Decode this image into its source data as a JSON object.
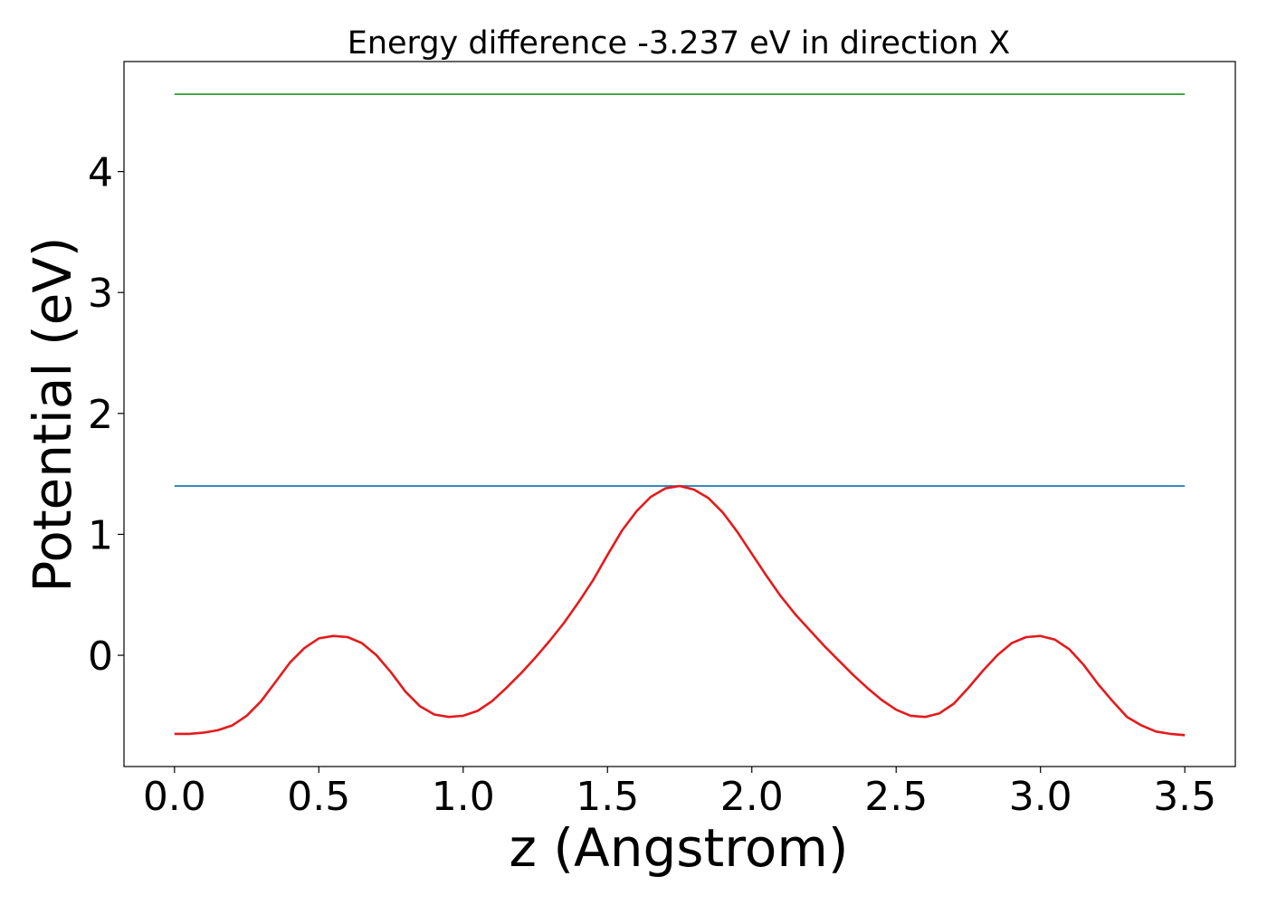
{
  "chart_data": {
    "type": "line",
    "title": "Energy difference -3.237 eV in direction X",
    "xlabel": "z (Angstrom)",
    "ylabel": "Potential (eV)",
    "xlim": [
      -0.175,
      3.675
    ],
    "ylim": [
      -0.92,
      4.91
    ],
    "x_ticks": [
      0.0,
      0.5,
      1.0,
      1.5,
      2.0,
      2.5,
      3.0,
      3.5
    ],
    "x_tick_labels": [
      "0.0",
      "0.5",
      "1.0",
      "1.5",
      "2.0",
      "2.5",
      "3.0",
      "3.5"
    ],
    "y_ticks": [
      0,
      1,
      2,
      3,
      4
    ],
    "y_tick_labels": [
      "0",
      "1",
      "2",
      "3",
      "4"
    ],
    "grid": false,
    "series": [
      {
        "color": "#2ca02c",
        "x": [
          0.0,
          3.5
        ],
        "y": [
          4.64,
          4.64
        ]
      },
      {
        "color": "#1f77b4",
        "x": [
          0.0,
          3.5
        ],
        "y": [
          1.4,
          1.4
        ]
      },
      {
        "color": "#e41a1c",
        "x": [
          0.0,
          0.05,
          0.1,
          0.15,
          0.2,
          0.25,
          0.3,
          0.35,
          0.4,
          0.45,
          0.5,
          0.55,
          0.6,
          0.65,
          0.7,
          0.75,
          0.8,
          0.85,
          0.9,
          0.95,
          1.0,
          1.05,
          1.1,
          1.15,
          1.2,
          1.25,
          1.3,
          1.35,
          1.4,
          1.45,
          1.5,
          1.55,
          1.6,
          1.65,
          1.7,
          1.75,
          1.8,
          1.85,
          1.9,
          1.95,
          2.0,
          2.05,
          2.1,
          2.15,
          2.2,
          2.25,
          2.3,
          2.35,
          2.4,
          2.45,
          2.5,
          2.55,
          2.6,
          2.65,
          2.7,
          2.75,
          2.8,
          2.85,
          2.9,
          2.95,
          3.0,
          3.05,
          3.1,
          3.15,
          3.2,
          3.25,
          3.3,
          3.35,
          3.4,
          3.45,
          3.5
        ],
        "y": [
          -0.65,
          -0.65,
          -0.64,
          -0.62,
          -0.58,
          -0.5,
          -0.38,
          -0.22,
          -0.06,
          0.06,
          0.14,
          0.16,
          0.15,
          0.1,
          0.0,
          -0.14,
          -0.3,
          -0.42,
          -0.49,
          -0.51,
          -0.5,
          -0.46,
          -0.38,
          -0.27,
          -0.15,
          -0.02,
          0.12,
          0.27,
          0.44,
          0.62,
          0.83,
          1.03,
          1.19,
          1.31,
          1.38,
          1.4,
          1.37,
          1.3,
          1.18,
          1.02,
          0.84,
          0.66,
          0.49,
          0.34,
          0.21,
          0.08,
          -0.04,
          -0.16,
          -0.27,
          -0.37,
          -0.45,
          -0.5,
          -0.51,
          -0.48,
          -0.4,
          -0.27,
          -0.13,
          0.0,
          0.1,
          0.15,
          0.16,
          0.13,
          0.05,
          -0.08,
          -0.24,
          -0.38,
          -0.51,
          -0.58,
          -0.63,
          -0.65,
          -0.66
        ]
      }
    ]
  }
}
